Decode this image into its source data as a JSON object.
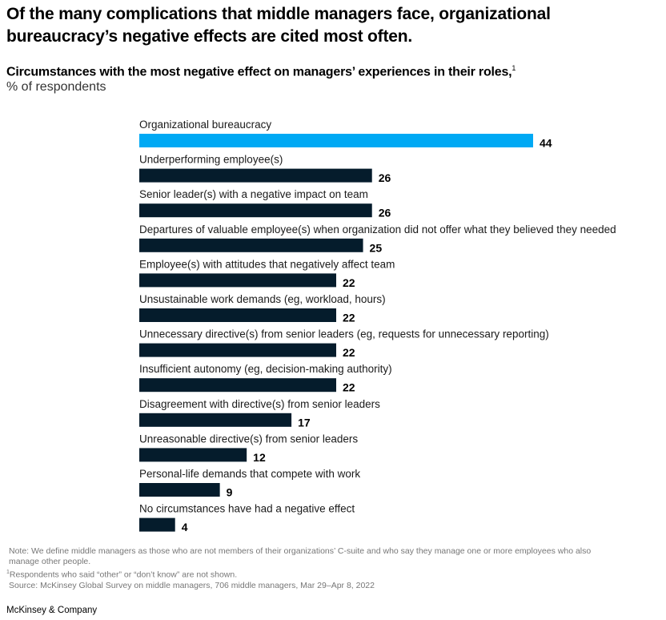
{
  "title": "Of the many complications that middle managers face, organizational bureaucracy’s negative effects are cited most often.",
  "subtitle": "Circumstances with the most negative effect on managers’ experiences in their roles,",
  "subtitle_footnote": "1",
  "units": "% of respondents",
  "colors": {
    "highlight": "#00a9f4",
    "default": "#051c2c"
  },
  "chart_data": {
    "type": "bar",
    "orientation": "horizontal",
    "title": "Circumstances with the most negative effect on managers’ experiences in their roles",
    "xlabel": "% of respondents",
    "ylabel": "",
    "xlim": [
      0,
      44
    ],
    "grid": false,
    "legend": "none",
    "highlight_index": 0,
    "categories": [
      "Organizational bureaucracy",
      "Underperforming employee(s)",
      "Senior leader(s) with a negative impact on team",
      "Departures of valuable employee(s) when organization did not offer what they believed they needed",
      "Employee(s) with attitudes that negatively affect team",
      "Unsustainable work demands (eg, workload, hours)",
      "Unnecessary directive(s) from senior leaders (eg, requests for unnecessary reporting)",
      "Insufficient autonomy (eg, decision-making authority)",
      "Disagreement with directive(s) from senior leaders",
      "Unreasonable directive(s) from senior leaders",
      "Personal-life demands that compete with work",
      "No circumstances have had a negative effect"
    ],
    "values": [
      44,
      26,
      26,
      25,
      22,
      22,
      22,
      22,
      17,
      12,
      9,
      4
    ]
  },
  "notes": {
    "note_line1": "Note: We define middle managers as those who are not members of their organizations’ C-suite and who say they manage one or more employees who also",
    "note_line2": "manage other people.",
    "footnote_marker": "1",
    "footnote": "Respondents who said “other” or “don’t know” are not shown.",
    "source": "Source: McKinsey Global Survey on middle managers, 706 middle managers, Mar 29–Apr 8, 2022"
  },
  "brand": "McKinsey & Company"
}
